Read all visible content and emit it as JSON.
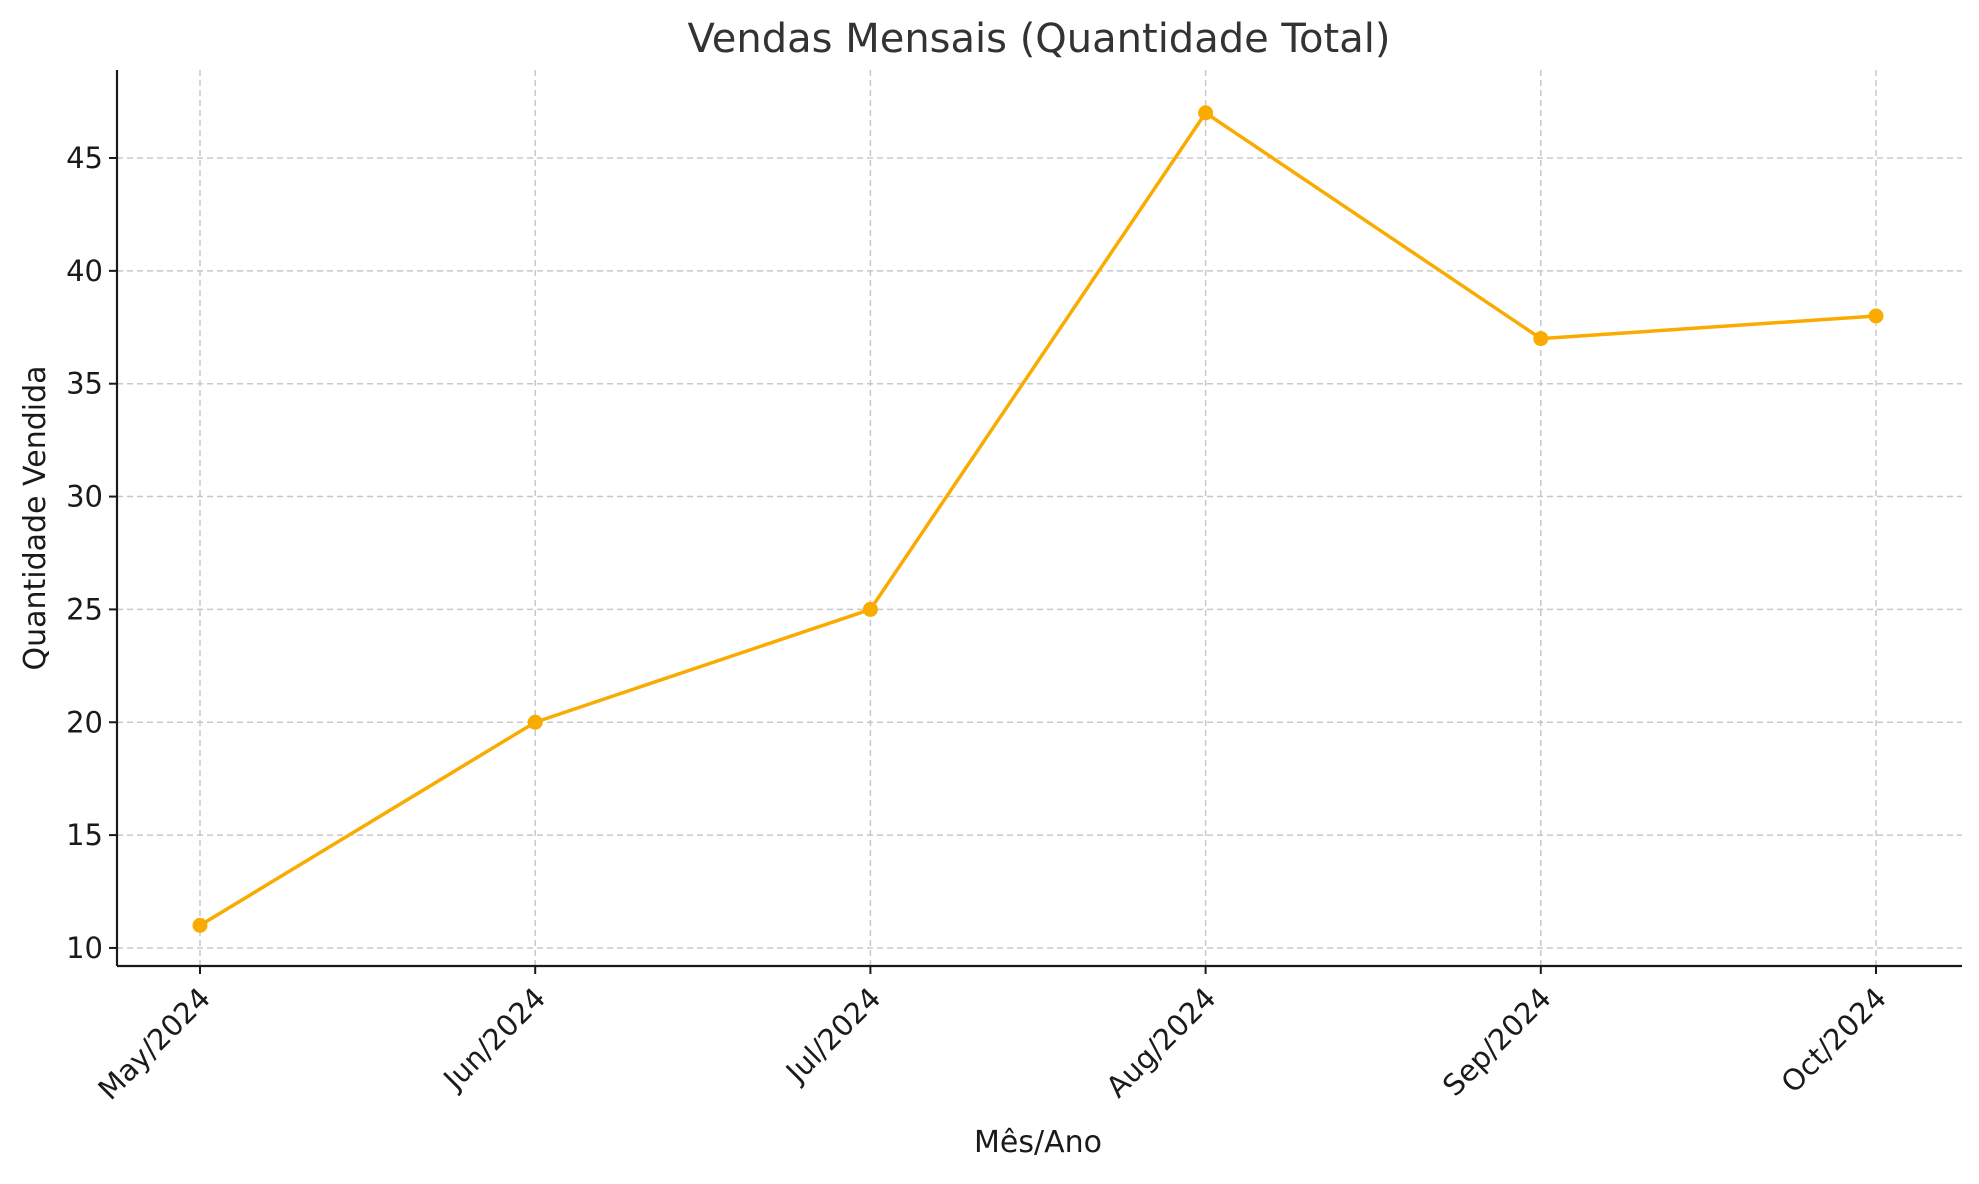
{
  "chart_data": {
    "type": "line",
    "title": "Vendas Mensais (Quantidade Total)",
    "xlabel": "Mês/Ano",
    "ylabel": "Quantidade Vendida",
    "categories": [
      "May/2024",
      "Jun/2024",
      "Jul/2024",
      "Aug/2024",
      "Sep/2024",
      "Oct/2024"
    ],
    "series": [
      {
        "values": [
          11,
          20,
          25,
          47,
          37,
          38
        ],
        "color": "#f9ab00",
        "marker": "circle"
      }
    ],
    "yticks": [
      10,
      15,
      20,
      25,
      30,
      35,
      40,
      45
    ],
    "ylim": [
      9.2,
      48.9
    ],
    "grid": true,
    "grid_style": "dashed",
    "legend": "none"
  }
}
